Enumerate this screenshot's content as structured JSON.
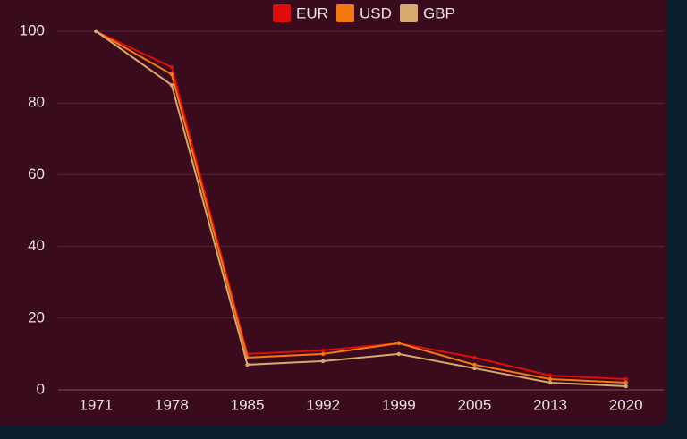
{
  "chart_data": {
    "type": "line",
    "categories": [
      "1971",
      "1978",
      "1985",
      "1992",
      "1999",
      "2005",
      "2013",
      "2020"
    ],
    "series": [
      {
        "name": "EUR",
        "color": "#e00b0b",
        "values": [
          100,
          90,
          10,
          11,
          13,
          9,
          4,
          3
        ]
      },
      {
        "name": "USD",
        "color": "#f5780f",
        "values": [
          100,
          88,
          9,
          10,
          13,
          7,
          3,
          2
        ]
      },
      {
        "name": "GBP",
        "color": "#d6a96c",
        "values": [
          100,
          85,
          7,
          8,
          10,
          6,
          2,
          1
        ]
      }
    ],
    "ylim": [
      0,
      100
    ],
    "yticks": [
      0,
      20,
      40,
      60,
      80,
      100
    ],
    "grid": true,
    "legend": "top"
  }
}
